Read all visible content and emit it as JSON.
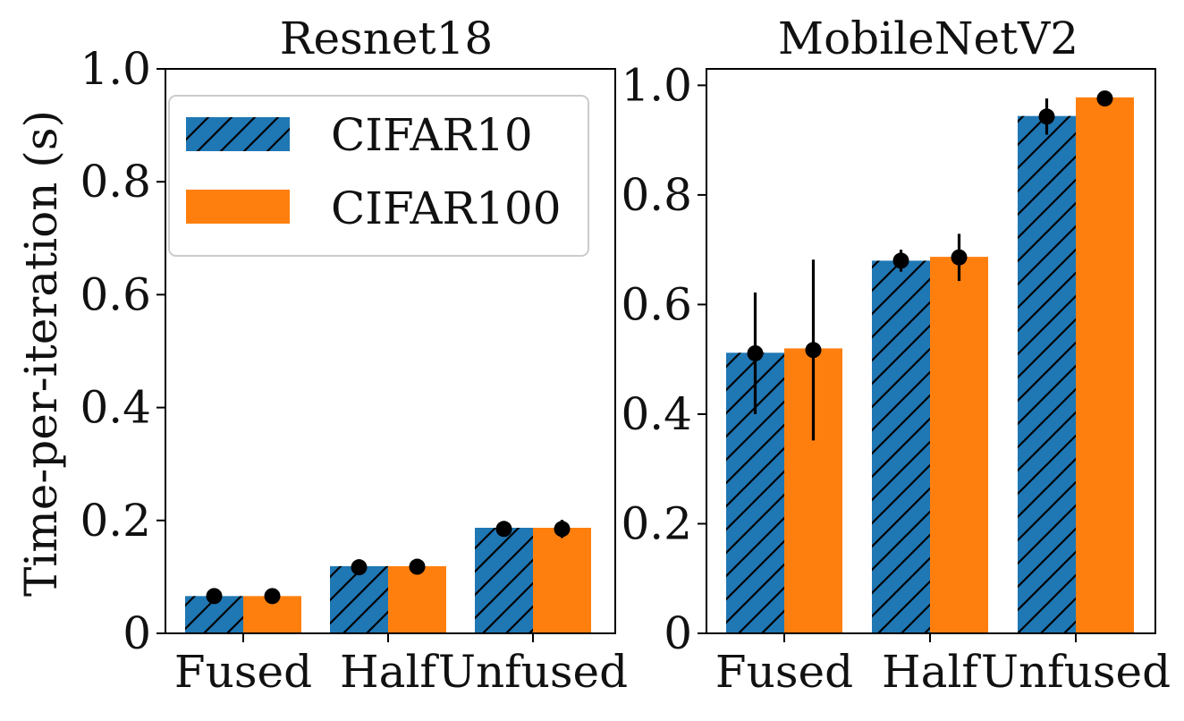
{
  "colors": {
    "cifar10": "#1f77b4",
    "cifar100": "#ff7f0e",
    "hatch": "#000000",
    "errorbar": "#000000",
    "axis": "#000000"
  },
  "legend": {
    "location": "top-left of left panel",
    "entries": [
      "CIFAR10",
      "CIFAR100"
    ]
  },
  "chart_data": [
    {
      "type": "bar",
      "title": "Resnet18",
      "xlabel": "",
      "ylabel": "Time-per-iteration (s)",
      "ylim": [
        0,
        1.0
      ],
      "yticks": [
        0,
        0.2,
        0.4,
        0.6,
        0.8,
        1.0
      ],
      "ytick_labels": [
        "0",
        "0.2",
        "0.4",
        "0.6",
        "0.8",
        "1.0"
      ],
      "categories": [
        "Fused",
        "Half",
        "Unfused"
      ],
      "series": [
        {
          "name": "CIFAR10",
          "hatch": true,
          "values": [
            0.066,
            0.119,
            0.187
          ],
          "means": [
            0.066,
            0.117,
            0.185
          ],
          "errors": [
            0.006,
            0.014,
            0.01
          ]
        },
        {
          "name": "CIFAR100",
          "hatch": false,
          "values": [
            0.066,
            0.119,
            0.187
          ],
          "means": [
            0.066,
            0.118,
            0.185
          ],
          "errors": [
            0.005,
            0.009,
            0.016
          ]
        }
      ]
    },
    {
      "type": "bar",
      "title": "MobileNetV2",
      "xlabel": "",
      "ylabel": "",
      "ylim": [
        0,
        1.03
      ],
      "yticks": [
        0,
        0.2,
        0.4,
        0.6,
        0.8,
        1.0
      ],
      "ytick_labels": [
        "0",
        "0.2",
        "0.4",
        "0.6",
        "0.8",
        "1.0"
      ],
      "categories": [
        "Fused",
        "Half",
        "Unfused"
      ],
      "series": [
        {
          "name": "CIFAR10",
          "hatch": true,
          "values": [
            0.512,
            0.68,
            0.944
          ],
          "means": [
            0.511,
            0.68,
            0.943
          ],
          "errors": [
            0.111,
            0.02,
            0.033
          ]
        },
        {
          "name": "CIFAR100",
          "hatch": false,
          "values": [
            0.52,
            0.687,
            0.978
          ],
          "means": [
            0.517,
            0.686,
            0.976
          ],
          "errors": [
            0.165,
            0.043,
            0.005
          ]
        }
      ]
    }
  ]
}
